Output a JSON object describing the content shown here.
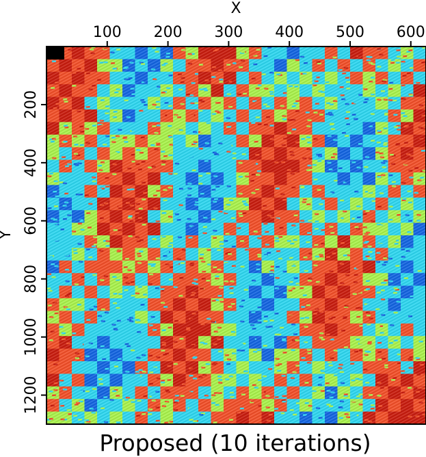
{
  "chart_data": {
    "type": "heatmap",
    "title": "Proposed (10 iterations)",
    "xlabel": "X",
    "ylabel": "Y",
    "xlim": [
      0,
      625
    ],
    "ylim": [
      1300,
      0
    ],
    "x_ticks": [
      100,
      200,
      300,
      400,
      500,
      600
    ],
    "y_ticks": [
      200,
      400,
      600,
      800,
      1000,
      1200
    ],
    "x_tick_labels": [
      "100",
      "200",
      "300",
      "400",
      "500",
      "600"
    ],
    "y_tick_labels": [
      "200",
      "400",
      "600",
      "800",
      "1000",
      "1200"
    ],
    "colormap": [
      "#1565e0",
      "#2fd5ee",
      "#a8f04c",
      "#f0502a",
      "#c81e10"
    ],
    "pattern": "diagonal checkerboard bands with fine texture",
    "notes": ""
  }
}
